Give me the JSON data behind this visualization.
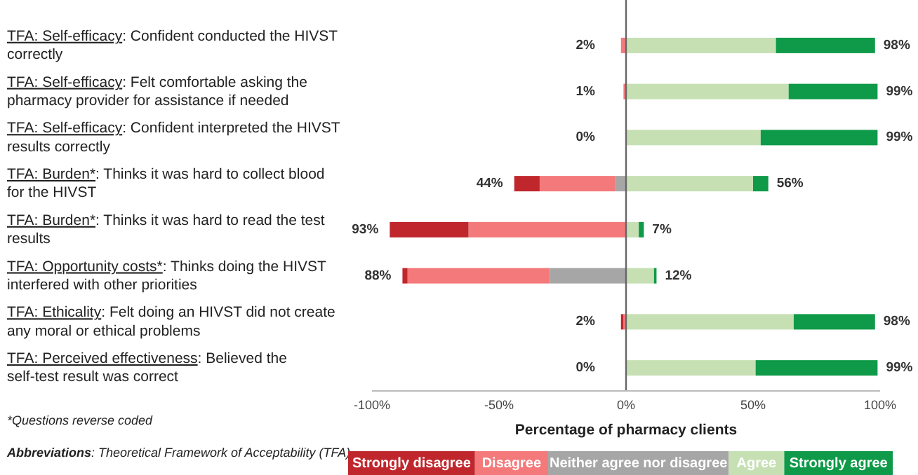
{
  "chart_data": {
    "type": "bar",
    "orientation": "horizontal",
    "stacked": true,
    "categories": [
      "TFA: Self-efficacy: Confident conducted the HIVST correctly",
      "TFA: Self-efficacy: Felt comfortable asking the pharmacy provider for assistance if needed",
      "TFA: Self-efficacy: Confident interpreted the HIVST results correctly",
      "TFA: Burden*: Thinks it was hard to collect blood for the HIVST",
      "TFA: Burden*: Thinks it was hard to read the test results",
      "TFA: Opportunity costs*: Thinks doing the HIVST interfered with other priorities",
      "TFA: Ethicality: Felt doing an HIVST did not create any moral or ethical problems",
      "TFA: Perceived effectiveness: Believed the self-test result was correct"
    ],
    "series": [
      {
        "name": "Neither agree nor disagree",
        "color": "#a6a6a6",
        "values": [
          null,
          null,
          null,
          -4,
          null,
          -30,
          null,
          null
        ]
      },
      {
        "name": "Disagree",
        "color": "#f4797a",
        "values": [
          -2,
          -1,
          null,
          -30,
          -62,
          -56,
          -1,
          null
        ]
      },
      {
        "name": "Strongly disagree",
        "color": "#c0272d",
        "values": [
          null,
          null,
          null,
          -10,
          -31,
          -2,
          -1,
          null
        ]
      },
      {
        "name": "Agree",
        "color": "#c6e0b4",
        "values": [
          59,
          64,
          53,
          50,
          5,
          11,
          66,
          51
        ]
      },
      {
        "name": "Strongly agree",
        "color": "#0e9a48",
        "values": [
          39,
          35,
          46,
          6,
          2,
          1,
          32,
          48
        ]
      }
    ],
    "xlim": [
      -100,
      100
    ],
    "xticks": [
      {
        "value": -100,
        "label": "-100%"
      },
      {
        "value": -50,
        "label": "-50%"
      },
      {
        "value": 0,
        "label": "0%"
      },
      {
        "value": 50,
        "label": "50%"
      },
      {
        "value": 100,
        "label": "100%"
      }
    ],
    "xlabel": "Percentage of pharmacy clients",
    "grid": false,
    "ref_lines": [
      {
        "axis": "x",
        "value": 0,
        "color": "#666666"
      }
    ],
    "legend": "bottom",
    "annotations": [
      {
        "text": "2%",
        "x": -2,
        "y": "TFA: Self-efficacy: Confident conducted the HIVST correctly"
      },
      {
        "text": "98%",
        "x": 98,
        "y": "TFA: Self-efficacy: Confident conducted the HIVST correctly"
      },
      {
        "text": "1%",
        "x": -1,
        "y": "TFA: Self-efficacy: Felt comfortable asking the pharmacy provider for assistance if needed"
      },
      {
        "text": "99%",
        "x": 99,
        "y": "TFA: Self-efficacy: Felt comfortable asking the pharmacy provider for assistance if needed"
      },
      {
        "text": "0%",
        "x": 0,
        "y": "TFA: Self-efficacy: Confident interpreted the HIVST results correctly"
      },
      {
        "text": "99%",
        "x": 99,
        "y": "TFA: Self-efficacy: Confident interpreted the HIVST results correctly"
      },
      {
        "text": "44%",
        "x": -44,
        "y": "TFA: Burden*: Thinks it was hard to collect blood for the HIVST"
      },
      {
        "text": "56%",
        "x": 56,
        "y": "TFA: Burden*: Thinks it was hard to collect blood for the HIVST"
      },
      {
        "text": "93%",
        "x": -93,
        "y": "TFA: Burden*: Thinks it was hard to read the test results"
      },
      {
        "text": "7%",
        "x": 7,
        "y": "TFA: Burden*: Thinks it was hard to read the test results"
      },
      {
        "text": "88%",
        "x": -88,
        "y": "TFA: Opportunity costs*: Thinks doing the HIVST interfered with other priorities"
      },
      {
        "text": "12%",
        "x": 12,
        "y": "TFA: Opportunity costs*: Thinks doing the HIVST interfered with other priorities"
      },
      {
        "text": "2%",
        "x": -2,
        "y": "TFA: Ethicality: Felt doing an HIVST did not create any moral or ethical problems"
      },
      {
        "text": "98%",
        "x": 98,
        "y": "TFA: Ethicality: Felt doing an HIVST did not create any moral or ethical problems"
      },
      {
        "text": "0%",
        "x": 0,
        "y": "TFA: Perceived effectiveness: Believed the self-test result was correct"
      },
      {
        "text": "99%",
        "x": 99,
        "y": "TFA: Perceived effectiveness: Believed the self-test result was correct"
      },
      "*Questions reverse coded",
      "Abbreviations: Theoretical Framework of Acceptability (TFA)"
    ]
  }
}
